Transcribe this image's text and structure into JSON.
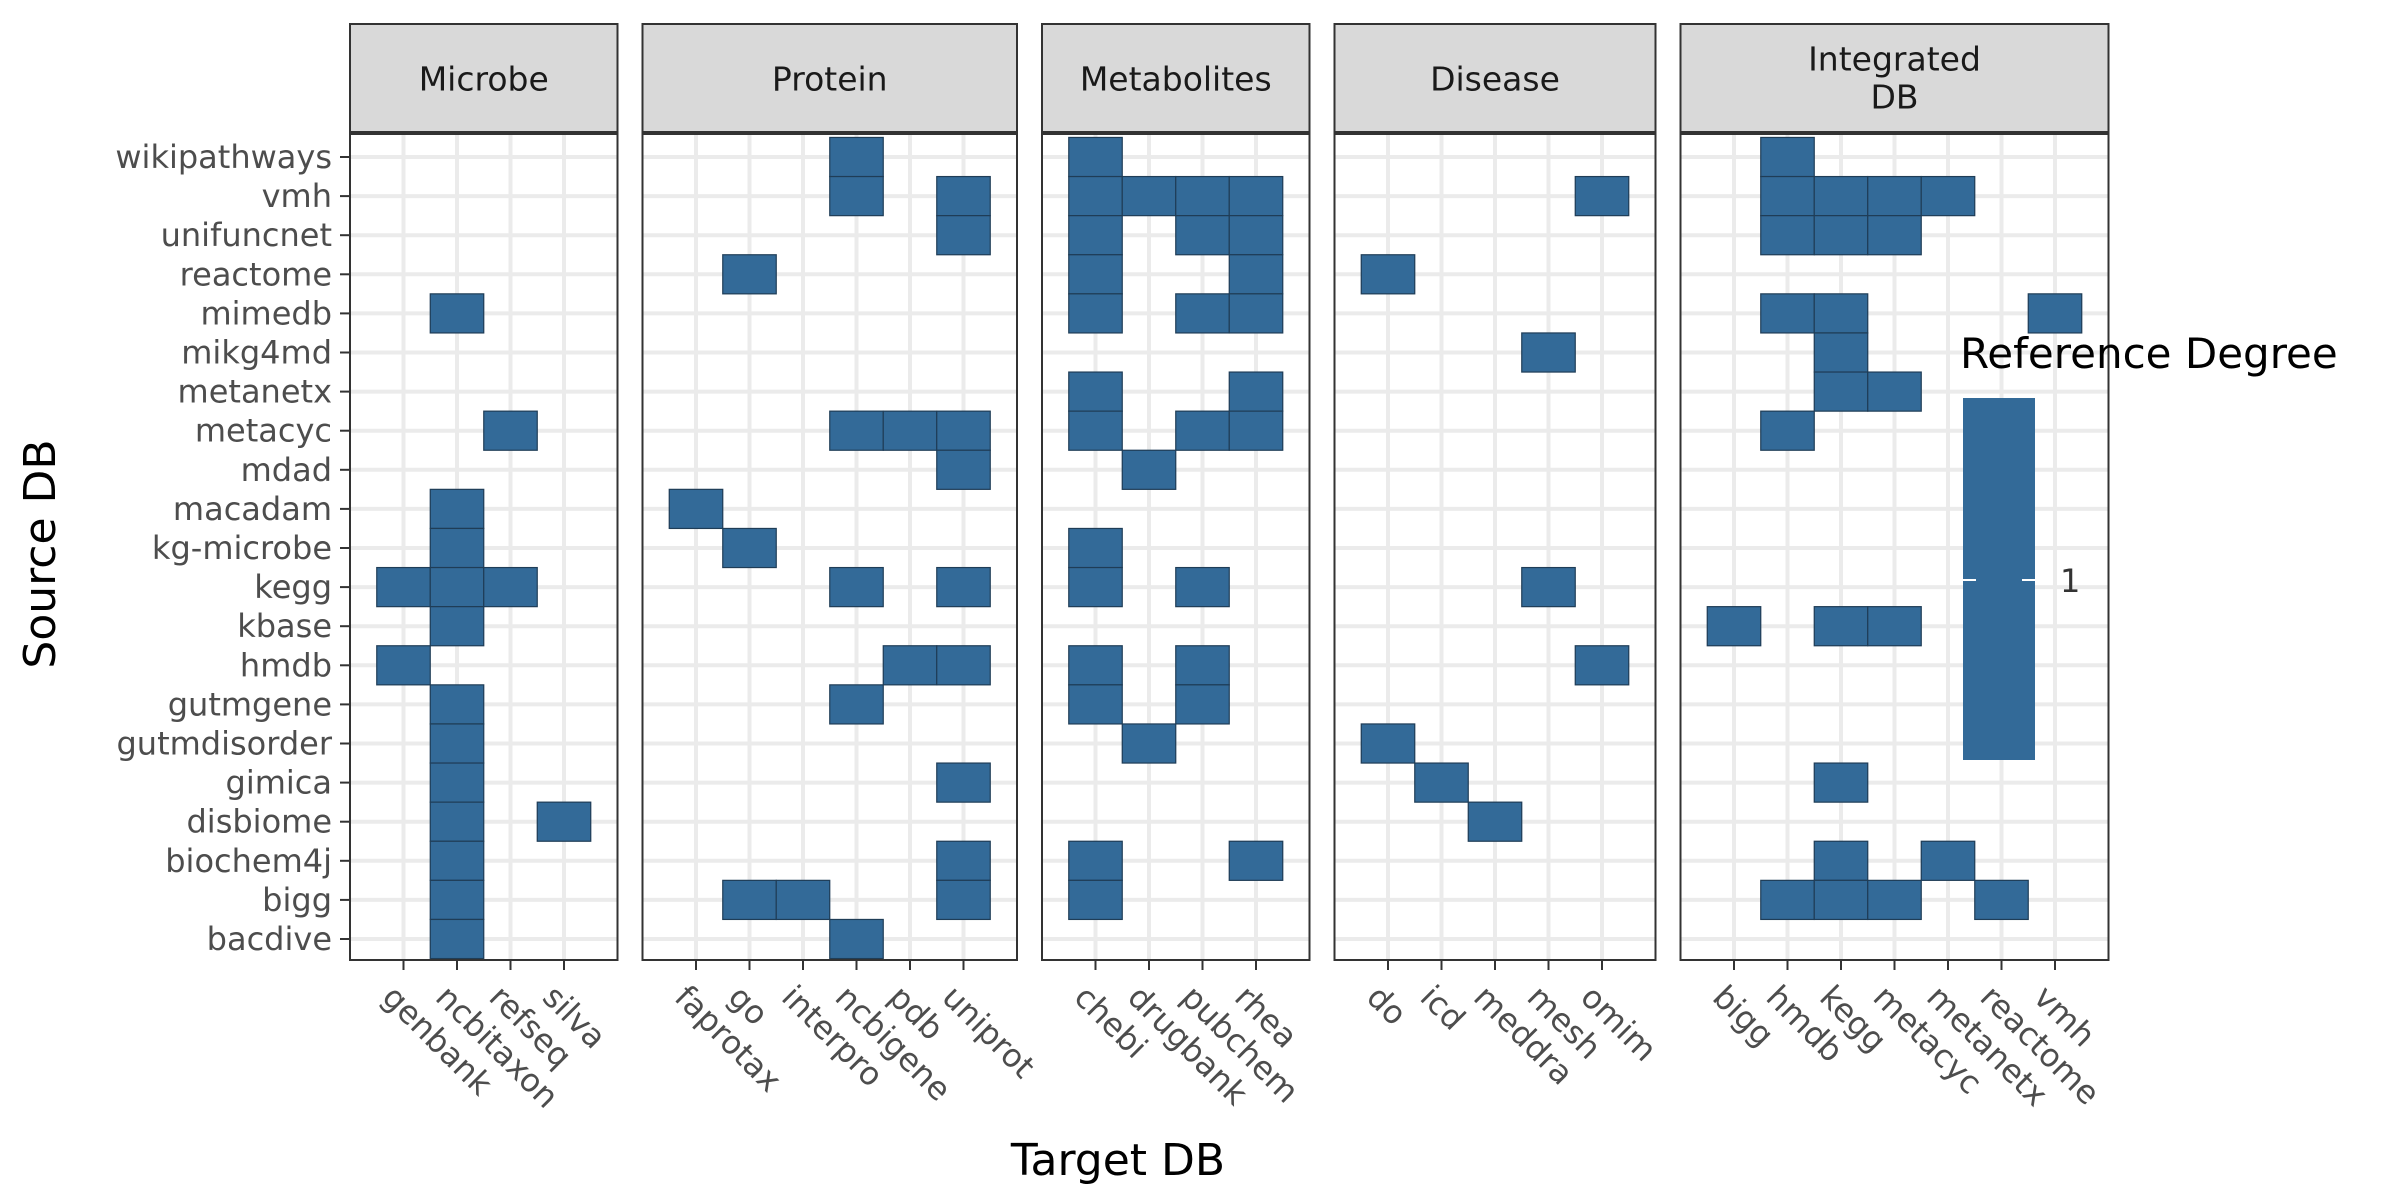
{
  "chart_data": {
    "type": "heatmap",
    "title": "",
    "xlabel": "Target DB",
    "ylabel": "Source DB",
    "fill_color": "#336a98",
    "grid": true,
    "legend": {
      "title": "Reference Degree",
      "labels": [
        "1"
      ],
      "placement": "right"
    },
    "rows": [
      "wikipathways",
      "vmh",
      "unifuncnet",
      "reactome",
      "mimedb",
      "mikg4md",
      "metanetx",
      "metacyc",
      "mdad",
      "macadam",
      "kg-microbe",
      "kegg",
      "kbase",
      "hmdb",
      "gutmgene",
      "gutmdisorder",
      "gimica",
      "disbiome",
      "biochem4j",
      "bigg",
      "bacdive"
    ],
    "facets": [
      {
        "label": "Microbe",
        "columns": [
          "genbank",
          "ncbitaxon",
          "refseq",
          "silva"
        ],
        "cells": [
          [
            "mimedb",
            "ncbitaxon"
          ],
          [
            "metacyc",
            "refseq"
          ],
          [
            "macadam",
            "ncbitaxon"
          ],
          [
            "kg-microbe",
            "ncbitaxon"
          ],
          [
            "kegg",
            "genbank"
          ],
          [
            "kegg",
            "ncbitaxon"
          ],
          [
            "kegg",
            "refseq"
          ],
          [
            "kbase",
            "ncbitaxon"
          ],
          [
            "hmdb",
            "genbank"
          ],
          [
            "gutmgene",
            "ncbitaxon"
          ],
          [
            "gutmdisorder",
            "ncbitaxon"
          ],
          [
            "gimica",
            "ncbitaxon"
          ],
          [
            "disbiome",
            "ncbitaxon"
          ],
          [
            "disbiome",
            "silva"
          ],
          [
            "biochem4j",
            "ncbitaxon"
          ],
          [
            "bigg",
            "ncbitaxon"
          ],
          [
            "bacdive",
            "ncbitaxon"
          ]
        ]
      },
      {
        "label": "Protein",
        "columns": [
          "faprotax",
          "go",
          "interpro",
          "ncbigene",
          "pdb",
          "uniprot"
        ],
        "cells": [
          [
            "wikipathways",
            "ncbigene"
          ],
          [
            "vmh",
            "ncbigene"
          ],
          [
            "vmh",
            "uniprot"
          ],
          [
            "unifuncnet",
            "uniprot"
          ],
          [
            "reactome",
            "go"
          ],
          [
            "metacyc",
            "ncbigene"
          ],
          [
            "metacyc",
            "pdb"
          ],
          [
            "metacyc",
            "uniprot"
          ],
          [
            "mdad",
            "uniprot"
          ],
          [
            "macadam",
            "faprotax"
          ],
          [
            "kg-microbe",
            "go"
          ],
          [
            "kegg",
            "ncbigene"
          ],
          [
            "kegg",
            "uniprot"
          ],
          [
            "hmdb",
            "pdb"
          ],
          [
            "hmdb",
            "uniprot"
          ],
          [
            "gutmgene",
            "ncbigene"
          ],
          [
            "gimica",
            "uniprot"
          ],
          [
            "biochem4j",
            "uniprot"
          ],
          [
            "bigg",
            "go"
          ],
          [
            "bigg",
            "interpro"
          ],
          [
            "bigg",
            "uniprot"
          ],
          [
            "bacdive",
            "ncbigene"
          ]
        ]
      },
      {
        "label": "Metabolites",
        "columns": [
          "chebi",
          "drugbank",
          "pubchem",
          "rhea"
        ],
        "cells": [
          [
            "wikipathways",
            "chebi"
          ],
          [
            "vmh",
            "chebi"
          ],
          [
            "vmh",
            "drugbank"
          ],
          [
            "vmh",
            "pubchem"
          ],
          [
            "vmh",
            "rhea"
          ],
          [
            "unifuncnet",
            "chebi"
          ],
          [
            "unifuncnet",
            "pubchem"
          ],
          [
            "unifuncnet",
            "rhea"
          ],
          [
            "reactome",
            "chebi"
          ],
          [
            "reactome",
            "rhea"
          ],
          [
            "mimedb",
            "chebi"
          ],
          [
            "mimedb",
            "pubchem"
          ],
          [
            "mimedb",
            "rhea"
          ],
          [
            "metanetx",
            "chebi"
          ],
          [
            "metanetx",
            "rhea"
          ],
          [
            "metacyc",
            "chebi"
          ],
          [
            "metacyc",
            "pubchem"
          ],
          [
            "metacyc",
            "rhea"
          ],
          [
            "mdad",
            "drugbank"
          ],
          [
            "kg-microbe",
            "chebi"
          ],
          [
            "kegg",
            "chebi"
          ],
          [
            "kegg",
            "pubchem"
          ],
          [
            "hmdb",
            "chebi"
          ],
          [
            "hmdb",
            "pubchem"
          ],
          [
            "gutmgene",
            "chebi"
          ],
          [
            "gutmgene",
            "pubchem"
          ],
          [
            "gutmdisorder",
            "drugbank"
          ],
          [
            "biochem4j",
            "chebi"
          ],
          [
            "biochem4j",
            "rhea"
          ],
          [
            "bigg",
            "chebi"
          ]
        ]
      },
      {
        "label": "Disease",
        "columns": [
          "do",
          "icd",
          "meddra",
          "mesh",
          "omim"
        ],
        "cells": [
          [
            "vmh",
            "omim"
          ],
          [
            "reactome",
            "do"
          ],
          [
            "mikg4md",
            "mesh"
          ],
          [
            "kegg",
            "mesh"
          ],
          [
            "hmdb",
            "omim"
          ],
          [
            "gutmdisorder",
            "do"
          ],
          [
            "gimica",
            "icd"
          ],
          [
            "disbiome",
            "meddra"
          ]
        ]
      },
      {
        "label": "Integrated\nDB",
        "columns": [
          "bigg",
          "hmdb",
          "kegg",
          "metacyc",
          "metanetx",
          "reactome",
          "vmh"
        ],
        "cells": [
          [
            "wikipathways",
            "hmdb"
          ],
          [
            "vmh",
            "hmdb"
          ],
          [
            "vmh",
            "kegg"
          ],
          [
            "vmh",
            "metacyc"
          ],
          [
            "vmh",
            "metanetx"
          ],
          [
            "unifuncnet",
            "hmdb"
          ],
          [
            "unifuncnet",
            "kegg"
          ],
          [
            "unifuncnet",
            "metacyc"
          ],
          [
            "mimedb",
            "hmdb"
          ],
          [
            "mimedb",
            "kegg"
          ],
          [
            "mimedb",
            "vmh"
          ],
          [
            "mikg4md",
            "kegg"
          ],
          [
            "metanetx",
            "kegg"
          ],
          [
            "metanetx",
            "metacyc"
          ],
          [
            "metacyc",
            "hmdb"
          ],
          [
            "kbase",
            "bigg"
          ],
          [
            "kbase",
            "kegg"
          ],
          [
            "kbase",
            "metacyc"
          ],
          [
            "gimica",
            "kegg"
          ],
          [
            "biochem4j",
            "kegg"
          ],
          [
            "biochem4j",
            "metanetx"
          ],
          [
            "bigg",
            "hmdb"
          ],
          [
            "bigg",
            "kegg"
          ],
          [
            "bigg",
            "metacyc"
          ],
          [
            "bigg",
            "reactome"
          ]
        ]
      }
    ]
  }
}
